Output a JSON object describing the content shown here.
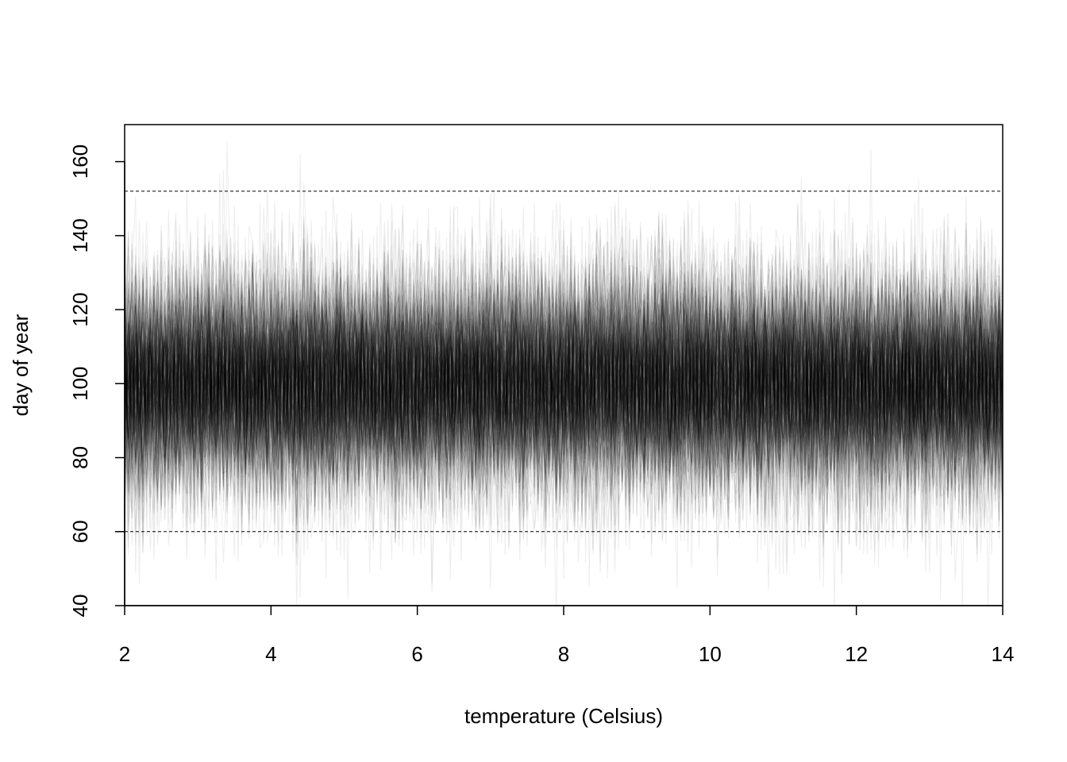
{
  "chart_data": {
    "type": "line",
    "title": "",
    "xlabel": "temperature (Celsius)",
    "ylabel": "day of year",
    "xlim": [
      2,
      14
    ],
    "ylim": [
      40,
      170
    ],
    "xticks": [
      2,
      4,
      6,
      8,
      10,
      12,
      14
    ],
    "xtick_labels": [
      "2",
      "4",
      "6",
      "8",
      "10",
      "12",
      "14"
    ],
    "yticks": [
      40,
      60,
      80,
      100,
      120,
      140,
      160
    ],
    "ytick_labels": [
      "40",
      "60",
      "80",
      "100",
      "120",
      "140",
      "160"
    ],
    "grid": false,
    "legend": "none",
    "description_of_marks": "many overlaid semi-transparent simulated series of day of year versus temperature",
    "series_summary": {
      "center": 100,
      "typical_spread_sd": 15,
      "min_observed": 40,
      "max_observed": 170
    },
    "reference_lines": [
      {
        "y": 152,
        "style": "dashed"
      },
      {
        "y": 60,
        "style": "dashed"
      }
    ],
    "colors": {
      "series": "#000000",
      "reference": "#000000",
      "axes": "#000000"
    }
  }
}
